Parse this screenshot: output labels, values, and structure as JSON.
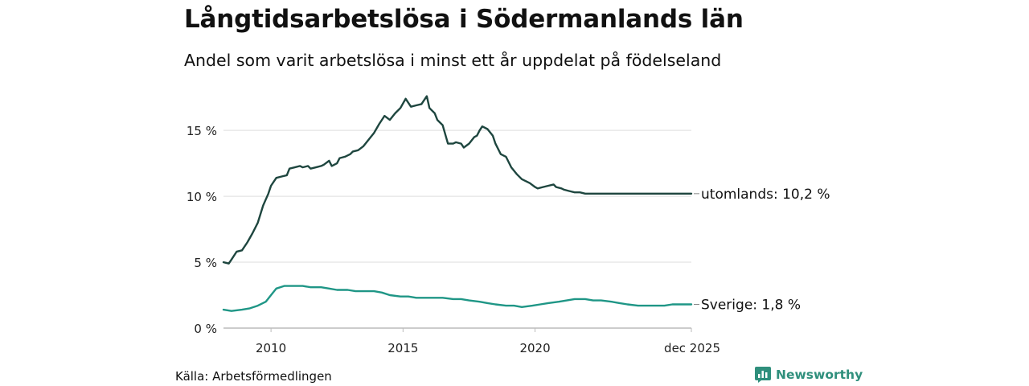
{
  "title": "Långtidsarbetslösa i Södermanlands län",
  "subtitle": "Andel som varit arbetslösa i minst ett år uppdelat på födelseland",
  "source": "Källa: Arbetsförmedlingen",
  "brand": {
    "name": "Newsworthy",
    "icon": "newsworthy-logo-icon",
    "color": "#2f8f7c"
  },
  "colors": {
    "utomlands": "#1e463f",
    "sverige": "#1f9686",
    "grid": "#dddddd",
    "axis": "#bbbbbb"
  },
  "chart_data": {
    "type": "line",
    "title": "Långtidsarbetslösa i Södermanlands län",
    "xlabel": "",
    "ylabel": "",
    "ylim": [
      0,
      18
    ],
    "xlim": [
      2008.2,
      2025.92
    ],
    "y_ticks": [
      0,
      5,
      10,
      15
    ],
    "y_tick_labels": [
      "0 %",
      "5 %",
      "10 %",
      "15 %"
    ],
    "x_ticks": [
      2010,
      2015,
      2020,
      2025.92
    ],
    "x_tick_labels": [
      "2010",
      "2015",
      "2020",
      "dec 2025"
    ],
    "grid": true,
    "series": [
      {
        "name": "utomlands",
        "label": "utomlands: 10,2 %",
        "x": [
          2008.2,
          2008.4,
          2008.5,
          2008.7,
          2008.9,
          2009.1,
          2009.3,
          2009.5,
          2009.7,
          2009.9,
          2010.0,
          2010.2,
          2010.4,
          2010.6,
          2010.7,
          2010.9,
          2011.1,
          2011.2,
          2011.4,
          2011.5,
          2011.7,
          2011.9,
          2012.0,
          2012.2,
          2012.3,
          2012.5,
          2012.6,
          2012.8,
          2013.0,
          2013.1,
          2013.3,
          2013.5,
          2013.7,
          2013.9,
          2014.1,
          2014.3,
          2014.5,
          2014.7,
          2014.9,
          2015.1,
          2015.3,
          2015.5,
          2015.7,
          2015.9,
          2016.0,
          2016.2,
          2016.3,
          2016.5,
          2016.7,
          2016.9,
          2017.0,
          2017.2,
          2017.3,
          2017.5,
          2017.7,
          2017.8,
          2017.9,
          2018.0,
          2018.2,
          2018.4,
          2018.5,
          2018.7,
          2018.9,
          2019.0,
          2019.1,
          2019.3,
          2019.5,
          2019.6,
          2019.8,
          2020.0,
          2020.1,
          2020.3,
          2020.5,
          2020.7,
          2020.8,
          2021.0,
          2021.1,
          2021.3,
          2021.5,
          2021.7,
          2021.9,
          2022.1,
          2022.3,
          2022.5,
          2022.7,
          2022.9,
          2023.1,
          2023.3,
          2023.5,
          2023.7,
          2023.9,
          2024.1,
          2024.3,
          2024.5,
          2024.7,
          2024.9,
          2025.1,
          2025.3,
          2025.5,
          2025.7,
          2025.92
        ],
        "values": [
          5.0,
          4.9,
          5.2,
          5.8,
          5.9,
          6.5,
          7.2,
          8.0,
          9.3,
          10.2,
          10.8,
          11.4,
          11.5,
          11.6,
          12.1,
          12.2,
          12.3,
          12.2,
          12.3,
          12.1,
          12.2,
          12.3,
          12.4,
          12.7,
          12.3,
          12.5,
          12.9,
          13.0,
          13.2,
          13.4,
          13.5,
          13.8,
          14.3,
          14.8,
          15.5,
          16.1,
          15.8,
          16.3,
          16.7,
          17.4,
          16.8,
          16.9,
          17.0,
          17.6,
          16.7,
          16.3,
          15.8,
          15.4,
          14.0,
          14.0,
          14.1,
          14.0,
          13.7,
          14.0,
          14.5,
          14.6,
          15.0,
          15.3,
          15.1,
          14.6,
          14.0,
          13.2,
          13.0,
          12.6,
          12.2,
          11.7,
          11.3,
          11.2,
          11.0,
          10.7,
          10.6,
          10.7,
          10.8,
          10.9,
          10.7,
          10.6,
          10.5,
          10.4,
          10.3,
          10.3,
          10.2,
          10.2,
          10.2,
          10.2,
          10.2,
          10.2,
          10.2,
          10.2,
          10.2,
          10.2,
          10.2,
          10.2,
          10.2,
          10.2,
          10.2,
          10.2,
          10.2,
          10.2,
          10.2,
          10.2,
          10.2
        ]
      },
      {
        "name": "Sverige",
        "label": "Sverige:  1,8 %",
        "x": [
          2008.2,
          2008.5,
          2008.9,
          2009.2,
          2009.5,
          2009.8,
          2010.0,
          2010.2,
          2010.5,
          2010.8,
          2011.2,
          2011.5,
          2011.9,
          2012.2,
          2012.5,
          2012.9,
          2013.2,
          2013.5,
          2013.9,
          2014.2,
          2014.5,
          2014.9,
          2015.2,
          2015.5,
          2015.9,
          2016.2,
          2016.5,
          2016.9,
          2017.2,
          2017.5,
          2017.9,
          2018.2,
          2018.5,
          2018.9,
          2019.2,
          2019.5,
          2019.9,
          2020.2,
          2020.5,
          2020.9,
          2021.2,
          2021.5,
          2021.9,
          2022.2,
          2022.5,
          2022.9,
          2023.2,
          2023.5,
          2023.9,
          2024.2,
          2024.5,
          2024.9,
          2025.2,
          2025.5,
          2025.92
        ],
        "values": [
          1.4,
          1.3,
          1.4,
          1.5,
          1.7,
          2.0,
          2.5,
          3.0,
          3.2,
          3.2,
          3.2,
          3.1,
          3.1,
          3.0,
          2.9,
          2.9,
          2.8,
          2.8,
          2.8,
          2.7,
          2.5,
          2.4,
          2.4,
          2.3,
          2.3,
          2.3,
          2.3,
          2.2,
          2.2,
          2.1,
          2.0,
          1.9,
          1.8,
          1.7,
          1.7,
          1.6,
          1.7,
          1.8,
          1.9,
          2.0,
          2.1,
          2.2,
          2.2,
          2.1,
          2.1,
          2.0,
          1.9,
          1.8,
          1.7,
          1.7,
          1.7,
          1.7,
          1.8,
          1.8,
          1.8
        ]
      }
    ]
  }
}
